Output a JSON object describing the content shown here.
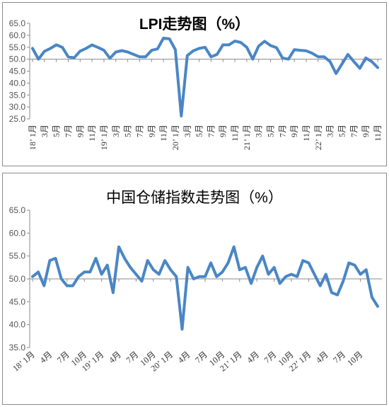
{
  "chart_data": [
    {
      "type": "line",
      "title": "LPI走势图（%）",
      "ylim": [
        25.0,
        65.0
      ],
      "yticks": [
        "25.0",
        "30.0",
        "35.0",
        "40.0",
        "45.0",
        "50.0",
        "55.0",
        "60.0",
        "65.0"
      ],
      "ref_line": 50,
      "grid": false,
      "legend": "none",
      "x_tick_labels": [
        "18’ 1月",
        "3月",
        "5月",
        "7月",
        "9月",
        "11月",
        "19’ 1月",
        "3月",
        "5月",
        "7月",
        "9月",
        "11月",
        "20’ 1月",
        "3月",
        "5月",
        "7月",
        "9月",
        "11月",
        "21’ 1月",
        "3月",
        "5月",
        "7月",
        "9月",
        "11月",
        "22’ 1月",
        "3月",
        "5月",
        "7月",
        "9月",
        "11月"
      ],
      "series": [
        {
          "values": [
            54.5,
            50.0,
            53.3,
            54.5,
            56.0,
            55.0,
            51.0,
            50.6,
            53.4,
            54.5,
            56.0,
            54.9,
            53.7,
            50.4,
            53.0,
            53.6,
            53.0,
            52.0,
            51.0,
            51.0,
            53.7,
            54.3,
            58.8,
            58.5,
            54.0,
            26.2,
            51.5,
            53.5,
            54.5,
            55.0,
            51.0,
            52.0,
            56.0,
            56.0,
            57.6,
            57.0,
            55.0,
            50.0,
            55.5,
            57.5,
            55.7,
            54.8,
            50.5,
            50.0,
            54.0,
            53.7,
            53.5,
            52.5,
            51.0,
            51.0,
            49.0,
            44.0,
            48.0,
            52.0,
            49.0,
            46.2,
            50.5,
            49.0,
            46.5
          ]
        }
      ],
      "colors": {
        "series": "#4a86c5",
        "axis": "#8a8a8a"
      }
    },
    {
      "type": "line",
      "title": "中国仓储指数走势图（%）",
      "ylim": [
        35.0,
        65.0
      ],
      "yticks": [
        "35.0",
        "40.0",
        "45.0",
        "50.0",
        "55.0",
        "60.0",
        "65.0"
      ],
      "ref_line": 50,
      "grid": false,
      "legend": "none",
      "x_tick_labels": [
        "18’ 1月",
        "4月",
        "7月",
        "10月",
        "19’ 1月",
        "4月",
        "7月",
        "10月",
        "20’ 1月",
        "4月",
        "7月",
        "10月",
        "21’ 1月",
        "4月",
        "7月",
        "10月",
        "22’ 1月",
        "4月",
        "7月",
        "10月"
      ],
      "series": [
        {
          "values": [
            50.5,
            51.5,
            48.5,
            54.0,
            54.5,
            50.0,
            48.5,
            48.5,
            50.5,
            51.5,
            51.5,
            54.5,
            51.0,
            53.0,
            47.0,
            57.0,
            54.5,
            52.5,
            51.0,
            49.5,
            54.0,
            52.0,
            51.0,
            54.0,
            52.0,
            50.5,
            39.0,
            52.5,
            50.0,
            50.5,
            50.5,
            53.5,
            50.5,
            51.5,
            53.5,
            57.0,
            52.0,
            52.5,
            49.0,
            52.5,
            55.0,
            51.0,
            52.5,
            49.0,
            50.5,
            51.0,
            50.5,
            54.0,
            53.5,
            51.0,
            48.5,
            51.0,
            47.0,
            46.5,
            49.5,
            53.5,
            53.0,
            51.0,
            52.0,
            46.0,
            44.0
          ]
        }
      ],
      "colors": {
        "series": "#4a86c5",
        "axis": "#8a8a8a"
      }
    }
  ]
}
